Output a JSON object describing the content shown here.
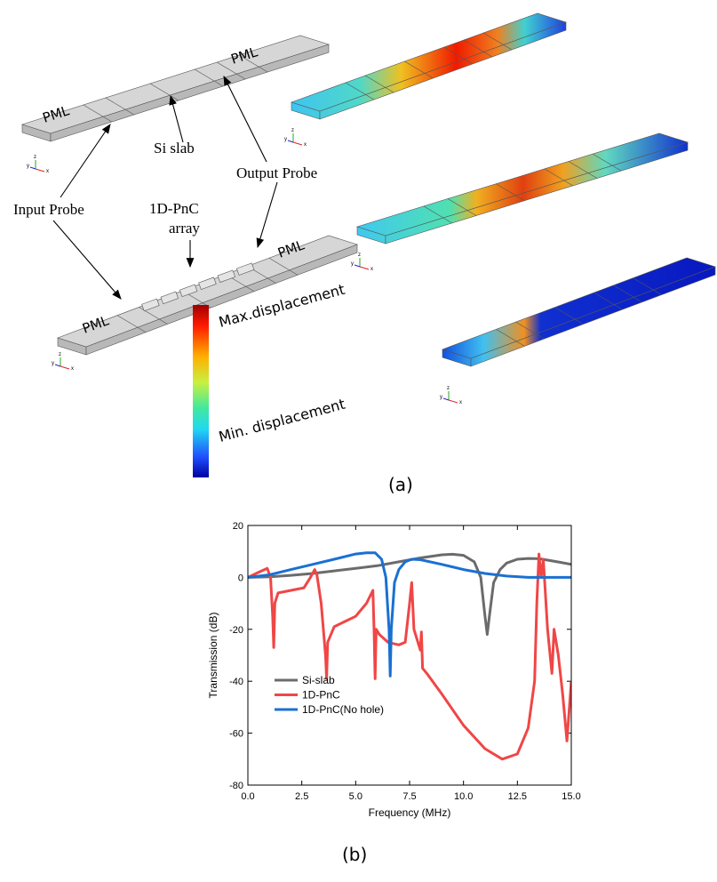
{
  "panel_a": {
    "pml_labels": [
      "PML",
      "PML",
      "PML",
      "PML"
    ],
    "si_slab": "Si slab",
    "output_probe": "Output Probe",
    "input_probe": "Input Probe",
    "pnc_label": [
      "1D-PnC",
      "array"
    ],
    "colorbar_max": "Max.displacement",
    "colorbar_min": "Min. displacement",
    "axis_triad": [
      "y",
      "z",
      "x"
    ],
    "caption": "(a)"
  },
  "chart_data": {
    "type": "line",
    "caption": "(b)",
    "xlabel": "Frequency (MHz)",
    "ylabel": "Transmission (dB)",
    "xlim": [
      0,
      15
    ],
    "ylim": [
      -80,
      20
    ],
    "xticks": [
      {
        "value": 0,
        "label": "0.0"
      },
      2.5,
      {
        "value": 5,
        "label": "5.0"
      },
      7.5,
      {
        "value": 10,
        "label": "10.0"
      },
      12.5,
      {
        "value": 15,
        "label": "15.0"
      }
    ],
    "yticks": [
      -80,
      -60,
      -40,
      -20,
      0,
      20
    ],
    "legend": "lower left",
    "series": [
      {
        "name": "Si-slab",
        "color": "#6b6b6b",
        "x": [
          0,
          1,
          2,
          3,
          4,
          5,
          6,
          7,
          8,
          9,
          9.5,
          10,
          10.5,
          10.8,
          11,
          11.1,
          11.2,
          11.4,
          11.7,
          12,
          12.5,
          13,
          13.5,
          14,
          14.5,
          15
        ],
        "values": [
          0,
          0.2,
          0.8,
          1.5,
          2.5,
          3.5,
          4.5,
          6,
          7.5,
          8.7,
          8.9,
          8.5,
          6,
          0,
          -15,
          -22,
          -15,
          -2,
          3,
          5.5,
          7,
          7.3,
          7.2,
          6.5,
          5.8,
          5
        ]
      },
      {
        "name": "1D-PnC",
        "color": "#f04646",
        "x": [
          0,
          0.5,
          0.9,
          1.05,
          1.15,
          1.2,
          1.25,
          1.4,
          2,
          2.6,
          2.9,
          3.1,
          3.2,
          3.4,
          3.6,
          3.65,
          3.7,
          4,
          4.5,
          5,
          5.5,
          5.8,
          5.85,
          5.9,
          5.95,
          6.1,
          6.5,
          7,
          7.3,
          7.5,
          7.6,
          7.7,
          8,
          8.05,
          8.1,
          8.3,
          9,
          10,
          11,
          11.8,
          12.5,
          13,
          13.3,
          13.4,
          13.5,
          13.6,
          13.7,
          13.9,
          14.1,
          14.2,
          14.4,
          14.6,
          14.8,
          15
        ],
        "values": [
          0,
          2,
          3.5,
          0,
          -15,
          -27,
          -10,
          -6,
          -5,
          -4,
          0,
          3,
          1,
          -10,
          -30,
          -39,
          -25,
          -19,
          -17,
          -15,
          -10,
          -5,
          -20,
          -39,
          -20,
          -22,
          -25,
          -26,
          -25,
          -10,
          -2,
          -20,
          -28,
          -21,
          -35,
          -37,
          -45,
          -57,
          -66,
          -70,
          -68,
          -58,
          -40,
          -10,
          9,
          0,
          7,
          -20,
          -37,
          -20,
          -30,
          -45,
          -63,
          -40
        ]
      },
      {
        "name": "1D-PnC(No hole)",
        "color": "#1a70d2",
        "x": [
          0,
          1,
          2,
          3,
          4,
          5,
          5.5,
          5.9,
          6.2,
          6.4,
          6.55,
          6.6,
          6.65,
          6.8,
          7,
          7.3,
          7.6,
          8,
          9,
          10,
          11,
          12,
          13,
          14,
          15
        ],
        "values": [
          0,
          1,
          3,
          5,
          7,
          9,
          9.5,
          9.5,
          7,
          0,
          -20,
          -38,
          -20,
          -2,
          3,
          6,
          7,
          6.8,
          5,
          3,
          1.5,
          0.5,
          0,
          0,
          0
        ]
      }
    ]
  }
}
